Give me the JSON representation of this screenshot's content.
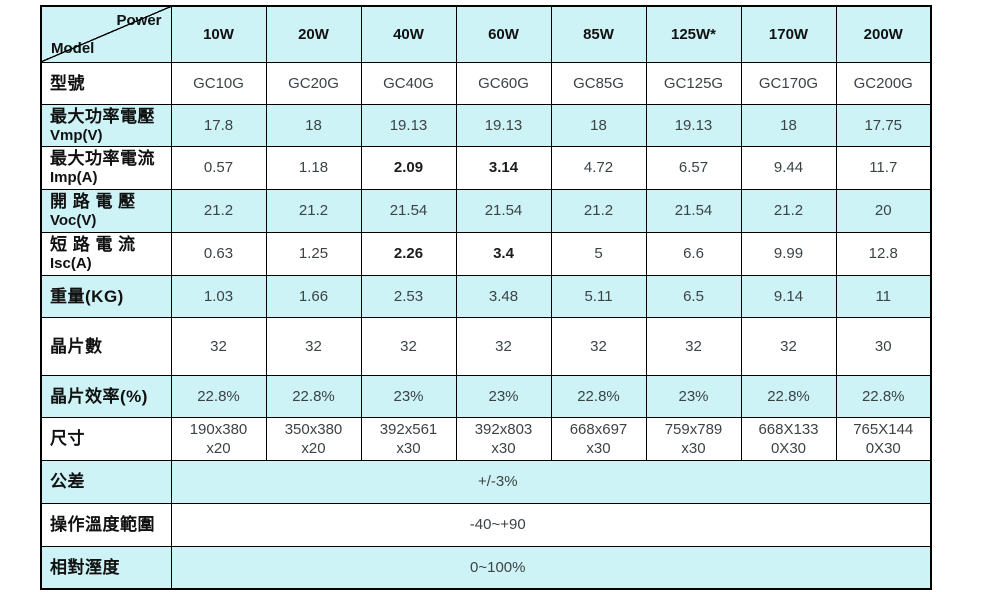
{
  "colors": {
    "row_highlight": "#cdf3f6",
    "grid": "#000000",
    "value_text": "#3c4347"
  },
  "table": {
    "corner": {
      "top_right": "Power",
      "bottom_left": "Model"
    },
    "col_headers": [
      "10W",
      "20W",
      "40W",
      "60W",
      "85W",
      "125W*",
      "170W",
      "200W"
    ],
    "rows": [
      {
        "label_zh": "型號",
        "cells": [
          "GC10G",
          "GC20G",
          "GC40G",
          "GC60G",
          "GC85G",
          "GC125G",
          "GC170G",
          "GC200G"
        ]
      },
      {
        "label_zh": "最大功率電壓",
        "label_en": "Vmp(V)",
        "cells": [
          "17.8",
          "18",
          "19.13",
          "19.13",
          "18",
          "19.13",
          "18",
          "17.75"
        ]
      },
      {
        "label_zh": "最大功率電流",
        "label_en": "Imp(A)",
        "cells": [
          "0.57",
          "1.18",
          "2.09",
          "3.14",
          "4.72",
          "6.57",
          "9.44",
          "11.7"
        ]
      },
      {
        "label_zh": "開 路 電 壓",
        "label_en": "Voc(V)",
        "cells": [
          "21.2",
          "21.2",
          "21.54",
          "21.54",
          "21.2",
          "21.54",
          "21.2",
          "20"
        ]
      },
      {
        "label_zh": "短 路 電 流",
        "label_en": "Isc(A)",
        "cells": [
          "0.63",
          "1.25",
          "2.26",
          "3.4",
          "5",
          "6.6",
          "9.99",
          "12.8"
        ]
      },
      {
        "label_zh": "重量(KG)",
        "cells": [
          "1.03",
          "1.66",
          "2.53",
          "3.48",
          "5.11",
          "6.5",
          "9.14",
          "11"
        ]
      },
      {
        "label_zh": "晶片數",
        "cells": [
          "32",
          "32",
          "32",
          "32",
          "32",
          "32",
          "32",
          "30"
        ]
      },
      {
        "label_zh": "晶片效率(%)",
        "cells": [
          "22.8%",
          "22.8%",
          "23%",
          "23%",
          "22.8%",
          "23%",
          "22.8%",
          "22.8%"
        ]
      },
      {
        "label_zh": "尺寸",
        "cells": [
          "190x380\nx20",
          "350x380\nx20",
          "392x561\nx30",
          "392x803\nx30",
          "668x697\nx30",
          "759x789\nx30",
          "668X133\n0X30",
          "765X144\n0X30"
        ]
      }
    ],
    "merged_rows": [
      {
        "label_zh": "公差",
        "value": "+/-3%"
      },
      {
        "label_zh": "操作溫度範圍",
        "value": "-40~+90"
      },
      {
        "label_zh": "相對溼度",
        "value": "0~100%"
      }
    ]
  }
}
